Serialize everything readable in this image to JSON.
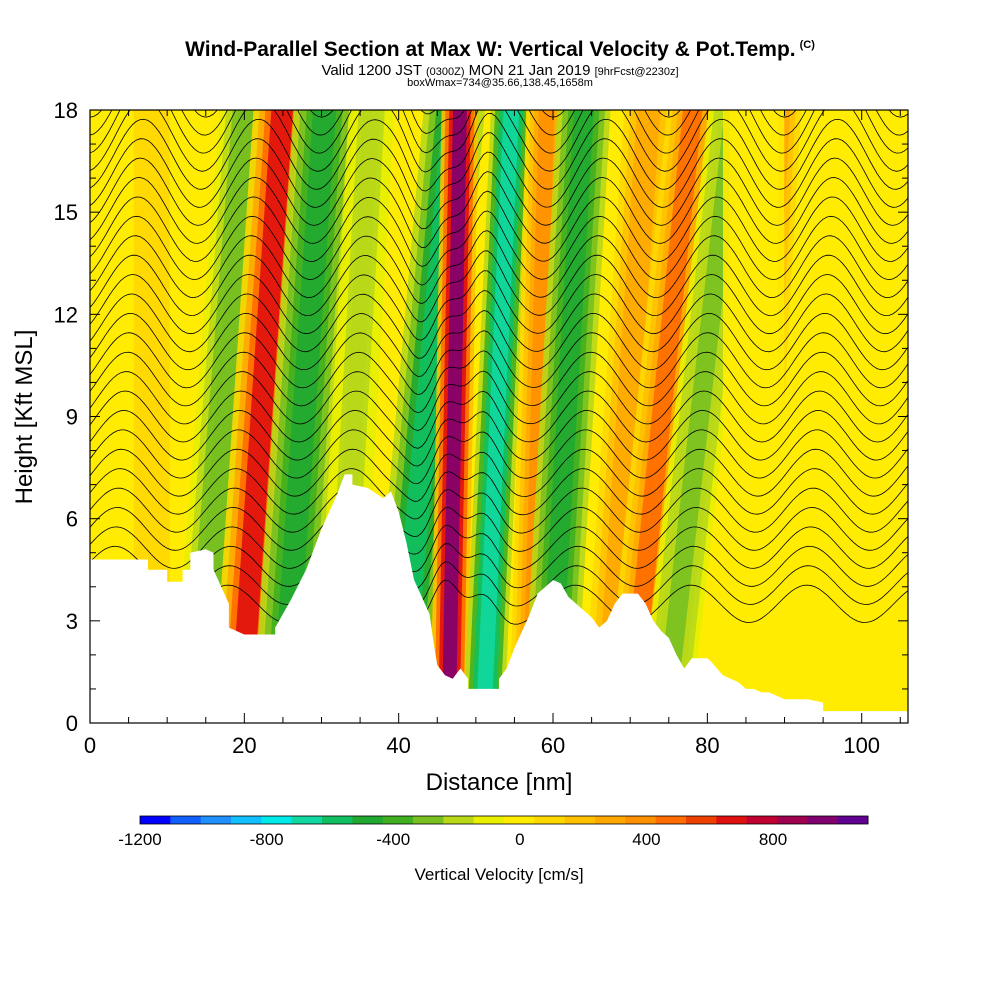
{
  "title": {
    "main": "Wind-Parallel Section at Max W: Vertical Velocity & Pot.Temp.",
    "copyright": "(C)",
    "valid_prefix": "Valid 1200 JST",
    "valid_utc": "(0300Z)",
    "valid_date": "MON 21 Jan 2019",
    "forecast": "[9hrFcst@2230z]",
    "box_info": "boxWmax=734@35.66,138.45,1658m"
  },
  "chart_data": {
    "type": "heatmap",
    "xlabel": "Distance [nm]",
    "ylabel": "Height [Kft MSL]",
    "xlim": [
      0,
      106
    ],
    "ylim": [
      0,
      18
    ],
    "x_ticks": [
      "0",
      "20",
      "40",
      "60",
      "80",
      "100"
    ],
    "y_ticks": [
      "0",
      "3",
      "6",
      "9",
      "12",
      "15",
      "18"
    ],
    "colorbar": {
      "label": "Vertical Velocity [cm/s]",
      "min": -1200,
      "max": 1100,
      "step": 100,
      "tick_labels": [
        "-1200",
        "-800",
        "-400",
        "0",
        "400",
        "800"
      ],
      "colors": [
        "#0000ff",
        "#1060ff",
        "#2090ff",
        "#10c0ff",
        "#00eaea",
        "#10d8a0",
        "#10c060",
        "#20a830",
        "#40b020",
        "#78c020",
        "#b8d818",
        "#e8f000",
        "#ffec00",
        "#ffd800",
        "#ffc000",
        "#ffa800",
        "#ff9000",
        "#ff6c00",
        "#f04000",
        "#e01010",
        "#c00030",
        "#a00050",
        "#800070",
        "#600090"
      ]
    },
    "terrain_profile": {
      "x": [
        0,
        7.5,
        7.5,
        10,
        10,
        12,
        12,
        13,
        13,
        15,
        16,
        16,
        17,
        18,
        18,
        20,
        20,
        24,
        24,
        25,
        26,
        28,
        30,
        32,
        33,
        34,
        34,
        36,
        38,
        39,
        40,
        41,
        42,
        44,
        44.5,
        45,
        46,
        47,
        48,
        49,
        49,
        53,
        53,
        54,
        55,
        57,
        58,
        60,
        61,
        62,
        64,
        65,
        66,
        67,
        68,
        69,
        71,
        72,
        73,
        74,
        75,
        76,
        77,
        78,
        79,
        80,
        80.5,
        82,
        83,
        84,
        85,
        86,
        87,
        88,
        89,
        90,
        91,
        92,
        93,
        94,
        95,
        95,
        106
      ],
      "height_kft": [
        4.8,
        4.8,
        4.5,
        4.5,
        4.15,
        4.15,
        4.5,
        4.5,
        5.0,
        5.1,
        5.0,
        4.5,
        4.0,
        3.5,
        2.8,
        2.6,
        2.6,
        2.6,
        2.8,
        3.2,
        3.6,
        4.5,
        5.7,
        6.7,
        7.3,
        7.3,
        7.0,
        6.9,
        6.6,
        6.8,
        6.2,
        5.3,
        4.2,
        3.2,
        2.4,
        1.7,
        1.4,
        1.3,
        1.6,
        1.3,
        1.0,
        1.0,
        1.3,
        1.6,
        2.2,
        3.2,
        3.8,
        4.2,
        4.1,
        3.7,
        3.3,
        3.1,
        2.8,
        3.0,
        3.5,
        3.8,
        3.8,
        3.5,
        3.0,
        2.7,
        2.5,
        2.0,
        1.6,
        1.9,
        1.9,
        1.9,
        1.8,
        1.4,
        1.3,
        1.2,
        1.0,
        1.0,
        0.9,
        0.9,
        0.8,
        0.7,
        0.7,
        0.7,
        0.7,
        0.65,
        0.6,
        0.35,
        0.35
      ]
    },
    "vertical_velocity_bands": [
      {
        "x_base": 8,
        "slope_nm_per_kft": 0,
        "width_nm": 3.0,
        "value_cm_s": 150
      },
      {
        "x_base": 14.5,
        "slope_nm_per_kft": 0.35,
        "width_nm": 3.0,
        "value_cm_s": -300
      },
      {
        "x_base": 19.5,
        "slope_nm_per_kft": 0.3,
        "width_nm": 2.8,
        "value_cm_s": 700
      },
      {
        "x_base": 25,
        "slope_nm_per_kft": 0.3,
        "width_nm": 3.0,
        "value_cm_s": -500
      },
      {
        "x_base": 32,
        "slope_nm_per_kft": 0.25,
        "width_nm": 2.2,
        "value_cm_s": -200
      },
      {
        "x_base": 40,
        "slope_nm_per_kft": 0.4,
        "width_nm": 3.0,
        "value_cm_s": -600
      },
      {
        "x_base": 46.5,
        "slope_nm_per_kft": 0.08,
        "width_nm": 1.8,
        "value_cm_s": 1000
      },
      {
        "x_base": 51,
        "slope_nm_per_kft": 0.2,
        "width_nm": 2.0,
        "value_cm_s": -700
      },
      {
        "x_base": 57,
        "slope_nm_per_kft": 0.12,
        "width_nm": 2.0,
        "value_cm_s": 400
      },
      {
        "x_base": 59.5,
        "slope_nm_per_kft": 0.25,
        "width_nm": 2.6,
        "value_cm_s": -450
      },
      {
        "x_base": 67,
        "slope_nm_per_kft": 0.3,
        "width_nm": 3.0,
        "value_cm_s": 300
      },
      {
        "x_base": 70,
        "slope_nm_per_kft": 0.45,
        "width_nm": 2.5,
        "value_cm_s": 500
      },
      {
        "x_base": 74.5,
        "slope_nm_per_kft": 0.5,
        "width_nm": 2.5,
        "value_cm_s": -250
      },
      {
        "x_base": 85,
        "slope_nm_per_kft": 0.25,
        "width_nm": 2.5,
        "value_cm_s": 300
      },
      {
        "x_base": 86,
        "slope_nm_per_kft": 0.0,
        "width_nm": 3.0,
        "value_cm_s": 50
      }
    ],
    "theta_contours": {
      "count": 30,
      "base_height_kft": 3.5,
      "spacing_kft": 0.55
    }
  }
}
